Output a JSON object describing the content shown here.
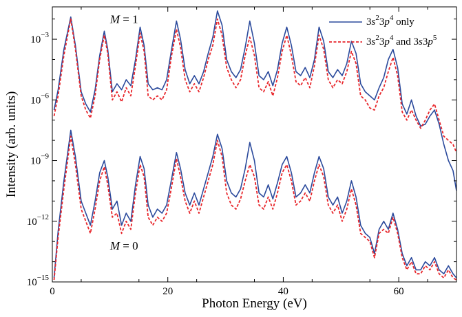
{
  "chart_data": {
    "type": "line",
    "xlabel": "Photon Energy (eV)",
    "ylabel": "Intensity (arb. units)",
    "xlim": [
      0,
      70
    ],
    "ylim_log10": [
      -15,
      -1.4
    ],
    "yscale": "log",
    "x_ticks": [
      0,
      20,
      40,
      60
    ],
    "x_tick_labels": [
      "0",
      "20",
      "40",
      "60"
    ],
    "y_ticks_log10": [
      -15,
      -12,
      -9,
      -6,
      -3
    ],
    "y_tick_labels": [
      {
        "base": "10",
        "exp": "−15"
      },
      {
        "base": "10",
        "exp": "−12"
      },
      {
        "base": "10",
        "exp": "−9"
      },
      {
        "base": "10",
        "exp": "−6"
      },
      {
        "base": "10",
        "exp": "−3"
      }
    ],
    "grid": false,
    "legend_position": "top-right",
    "annotations": [
      {
        "text": "M = 1",
        "italic": "M",
        "x": 10,
        "y_log10": -2.2
      },
      {
        "text": "M = 0",
        "italic": "M",
        "x": 10,
        "y_log10": -13.4
      }
    ],
    "series": [
      {
        "name": "3s²3p⁴ only",
        "color": "#2b4a9c",
        "style": "solid",
        "groups": [
          {
            "label": "M = 1",
            "x": [
              0.3,
              1,
              2,
              3.2,
              4,
              5,
              5.8,
              6.6,
              7.4,
              8.2,
              9,
              9.6,
              10.4,
              11.2,
              12,
              12.8,
              13.6,
              14.4,
              15.2,
              15.9,
              16.6,
              17.4,
              18.2,
              19,
              19.8,
              20.6,
              21.5,
              22.2,
              23,
              23.8,
              24.6,
              25.4,
              26.2,
              27,
              27.8,
              28.6,
              29.4,
              30.2,
              31,
              31.8,
              32.6,
              33.4,
              34.2,
              35,
              35.8,
              36.6,
              37.4,
              38.2,
              39,
              39.8,
              40.6,
              41.4,
              42.2,
              43,
              43.8,
              44.6,
              45.4,
              46.2,
              47,
              47.8,
              48.6,
              49.4,
              50.2,
              51,
              51.8,
              52.6,
              53.4,
              54.2,
              55,
              55.8,
              56.6,
              57.4,
              58.2,
              59,
              59.8,
              60.6,
              61.4,
              62.2,
              63,
              63.8,
              64.6,
              65.4,
              66.2,
              67,
              67.8,
              68.6,
              69.4,
              70
            ],
            "y_log10": [
              -6.5,
              -5.5,
              -3.5,
              -1.9,
              -3.3,
              -5.6,
              -6.2,
              -6.6,
              -5.5,
              -3.8,
              -2.6,
              -3.5,
              -5.6,
              -5.2,
              -5.5,
              -5.0,
              -5.3,
              -4.0,
              -2.4,
              -3.3,
              -5.2,
              -5.5,
              -5.4,
              -5.5,
              -5.0,
              -3.6,
              -2.1,
              -3.0,
              -4.5,
              -5.2,
              -4.8,
              -5.2,
              -4.6,
              -3.7,
              -2.9,
              -1.6,
              -2.3,
              -4.0,
              -4.6,
              -4.9,
              -4.5,
              -3.4,
              -2.1,
              -3.2,
              -4.8,
              -5.0,
              -4.6,
              -5.3,
              -4.5,
              -3.2,
              -2.4,
              -3.3,
              -4.6,
              -4.8,
              -4.4,
              -4.9,
              -4.0,
              -2.4,
              -3.1,
              -4.6,
              -4.9,
              -4.5,
              -4.8,
              -4.2,
              -3.1,
              -3.7,
              -5.2,
              -5.6,
              -5.8,
              -6.0,
              -5.4,
              -4.9,
              -4.0,
              -3.5,
              -4.4,
              -6.2,
              -6.7,
              -6.0,
              -6.8,
              -7.3,
              -7.2,
              -6.8,
              -6.5,
              -7.2,
              -8.2,
              -9.0,
              -9.5,
              -10.5
            ]
          },
          {
            "label": "M = 0",
            "x": [
              0.3,
              1,
              2,
              3.2,
              4,
              5,
              5.8,
              6.6,
              7.4,
              8.2,
              9,
              9.6,
              10.4,
              11.2,
              12,
              12.8,
              13.6,
              14.4,
              15.2,
              15.9,
              16.6,
              17.4,
              18.2,
              19,
              19.8,
              20.6,
              21.5,
              22.2,
              23,
              23.8,
              24.6,
              25.4,
              26.2,
              27,
              27.8,
              28.6,
              29.4,
              30.2,
              31,
              31.8,
              32.6,
              33.4,
              34.2,
              35,
              35.8,
              36.6,
              37.4,
              38.2,
              39,
              39.8,
              40.6,
              41.4,
              42.2,
              43,
              43.8,
              44.6,
              45.4,
              46.2,
              47,
              47.8,
              48.6,
              49.4,
              50.2,
              51,
              51.8,
              52.6,
              53.4,
              54.2,
              55,
              55.8,
              56.6,
              57.4,
              58.2,
              59,
              59.8,
              60.6,
              61.4,
              62.2,
              63,
              63.8,
              64.6,
              65.4,
              66.2,
              67,
              67.8,
              68.6,
              69.4,
              70
            ],
            "y_log10": [
              -14.8,
              -12.5,
              -10.0,
              -7.5,
              -8.8,
              -11.0,
              -11.6,
              -12.2,
              -11.0,
              -9.6,
              -9.0,
              -9.8,
              -11.4,
              -11.0,
              -12.2,
              -11.6,
              -12.0,
              -10.2,
              -8.8,
              -9.4,
              -11.2,
              -11.8,
              -11.4,
              -11.6,
              -11.2,
              -10.0,
              -8.6,
              -9.4,
              -10.6,
              -11.2,
              -10.6,
              -11.2,
              -10.4,
              -9.6,
              -8.8,
              -7.7,
              -8.4,
              -10.0,
              -10.6,
              -10.8,
              -10.4,
              -9.4,
              -8.1,
              -9.0,
              -10.6,
              -10.8,
              -10.2,
              -10.9,
              -10.1,
              -9.2,
              -8.8,
              -9.6,
              -10.8,
              -10.6,
              -10.2,
              -10.6,
              -9.6,
              -8.8,
              -9.4,
              -10.8,
              -11.2,
              -10.8,
              -11.6,
              -11.0,
              -10.0,
              -10.8,
              -12.2,
              -12.6,
              -12.8,
              -13.6,
              -12.4,
              -12.0,
              -12.4,
              -11.6,
              -12.4,
              -13.6,
              -14.2,
              -13.8,
              -14.4,
              -14.4,
              -14.0,
              -14.2,
              -13.8,
              -14.4,
              -14.6,
              -14.2,
              -14.6,
              -14.8
            ]
          }
        ]
      },
      {
        "name": "3s²3p⁴ and 3s3p⁵",
        "color": "#e8262b",
        "style": "dashed",
        "groups": [
          {
            "label": "M = 1",
            "x": [
              0.3,
              1,
              2,
              3.2,
              4,
              5,
              5.8,
              6.6,
              7.4,
              8.2,
              9,
              9.6,
              10.4,
              11.2,
              12,
              12.8,
              13.6,
              14.4,
              15.2,
              15.9,
              16.6,
              17.4,
              18.2,
              19,
              19.8,
              20.6,
              21.5,
              22.2,
              23,
              23.8,
              24.6,
              25.4,
              26.2,
              27,
              27.8,
              28.6,
              29.4,
              30.2,
              31,
              31.8,
              32.6,
              33.4,
              34.2,
              35,
              35.8,
              36.6,
              37.4,
              38.2,
              39,
              39.8,
              40.6,
              41.4,
              42.2,
              43,
              43.8,
              44.6,
              45.4,
              46.2,
              47,
              47.8,
              48.6,
              49.4,
              50.2,
              51,
              51.8,
              52.6,
              53.4,
              54.2,
              55,
              55.8,
              56.6,
              57.4,
              58.2,
              59,
              59.8,
              60.6,
              61.4,
              62.2,
              63,
              63.8,
              64.6,
              65.4,
              66.2,
              67,
              67.8,
              68.6,
              69.4,
              70
            ],
            "y_log10": [
              -6.8,
              -5.8,
              -3.8,
              -2.0,
              -3.5,
              -5.8,
              -6.5,
              -6.9,
              -5.8,
              -4.0,
              -2.8,
              -3.7,
              -6.0,
              -5.6,
              -6.1,
              -5.4,
              -5.8,
              -4.3,
              -2.7,
              -3.6,
              -5.8,
              -6.0,
              -5.8,
              -6.0,
              -5.5,
              -3.9,
              -2.5,
              -3.4,
              -5.0,
              -5.6,
              -5.2,
              -5.6,
              -4.9,
              -4.0,
              -3.3,
              -2.0,
              -2.8,
              -4.4,
              -5.0,
              -5.4,
              -5.0,
              -3.8,
              -2.9,
              -3.8,
              -5.4,
              -5.6,
              -5.1,
              -5.8,
              -4.9,
              -3.6,
              -2.8,
              -3.8,
              -5.1,
              -5.3,
              -4.9,
              -5.4,
              -4.3,
              -2.8,
              -3.5,
              -5.0,
              -5.4,
              -5.0,
              -5.2,
              -4.6,
              -3.6,
              -4.2,
              -5.8,
              -6.0,
              -6.4,
              -6.5,
              -5.8,
              -5.4,
              -4.6,
              -3.9,
              -4.8,
              -6.6,
              -7.0,
              -6.5,
              -7.0,
              -7.4,
              -7.0,
              -6.5,
              -6.2,
              -7.0,
              -7.8,
              -8.0,
              -8.2,
              -8.6
            ]
          },
          {
            "label": "M = 0",
            "x": [
              0.3,
              1,
              2,
              3.2,
              4,
              5,
              5.8,
              6.6,
              7.4,
              8.2,
              9,
              9.6,
              10.4,
              11.2,
              12,
              12.8,
              13.6,
              14.4,
              15.2,
              15.9,
              16.6,
              17.4,
              18.2,
              19,
              19.8,
              20.6,
              21.5,
              22.2,
              23,
              23.8,
              24.6,
              25.4,
              26.2,
              27,
              27.8,
              28.6,
              29.4,
              30.2,
              31,
              31.8,
              32.6,
              33.4,
              34.2,
              35,
              35.8,
              36.6,
              37.4,
              38.2,
              39,
              39.8,
              40.6,
              41.4,
              42.2,
              43,
              43.8,
              44.6,
              45.4,
              46.2,
              47,
              47.8,
              48.6,
              49.4,
              50.2,
              51,
              51.8,
              52.6,
              53.4,
              54.2,
              55,
              55.8,
              56.6,
              57.4,
              58.2,
              59,
              59.8,
              60.6,
              61.4,
              62.2,
              63,
              63.8,
              64.6,
              65.4,
              66.2,
              67,
              67.8,
              68.6,
              69.4,
              70
            ],
            "y_log10": [
              -14.9,
              -12.8,
              -10.4,
              -7.8,
              -9.2,
              -11.4,
              -12.0,
              -12.6,
              -11.4,
              -10.0,
              -9.3,
              -10.2,
              -11.8,
              -11.6,
              -12.6,
              -12.0,
              -12.4,
              -10.6,
              -9.2,
              -9.8,
              -11.8,
              -12.2,
              -11.8,
              -12.0,
              -11.6,
              -10.4,
              -8.9,
              -9.8,
              -11.0,
              -11.6,
              -11.0,
              -11.6,
              -10.8,
              -10.0,
              -9.2,
              -8.0,
              -8.8,
              -10.6,
              -11.2,
              -11.4,
              -10.9,
              -10.0,
              -9.2,
              -9.8,
              -11.2,
              -11.4,
              -10.8,
              -11.4,
              -10.6,
              -9.6,
              -9.2,
              -10.0,
              -11.2,
              -11.0,
              -10.6,
              -11.0,
              -10.0,
              -9.2,
              -9.8,
              -11.2,
              -11.6,
              -11.2,
              -12.0,
              -11.4,
              -10.4,
              -11.2,
              -12.6,
              -12.8,
              -13.0,
              -13.8,
              -12.6,
              -12.4,
              -12.6,
              -11.8,
              -12.6,
              -13.8,
              -14.4,
              -14.0,
              -14.6,
              -14.6,
              -14.2,
              -14.4,
              -14.0,
              -14.6,
              -14.8,
              -14.4,
              -14.8,
              -14.9
            ]
          }
        ]
      }
    ]
  }
}
